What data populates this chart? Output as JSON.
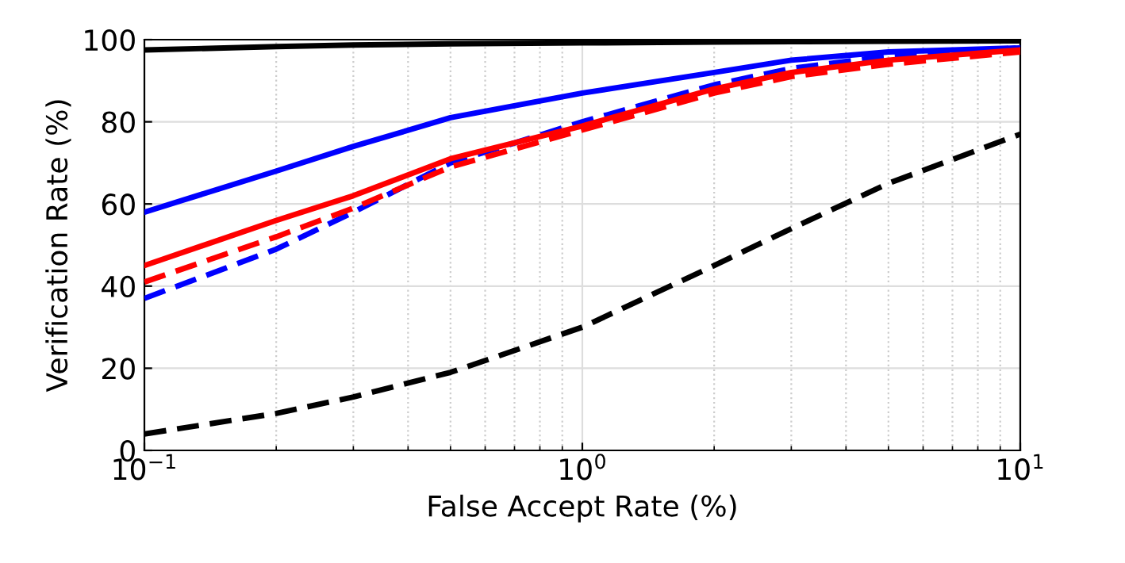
{
  "chart_data": {
    "type": "line",
    "xlabel": "False Accept Rate (%)",
    "ylabel": "Verification Rate (%)",
    "log": "x",
    "xlim": [
      0.1,
      10
    ],
    "xticks": [
      {
        "value": 0.1,
        "label": "10$^{−1}$"
      },
      {
        "value": 1,
        "label": "10$^{0}$"
      },
      {
        "value": 10,
        "label": "10$^{1}$"
      }
    ],
    "ylim": [
      0,
      100
    ],
    "yticks": [
      0,
      20,
      40,
      60,
      80,
      100
    ],
    "grid": true,
    "legend": false,
    "x": [
      0.1,
      0.2,
      0.3,
      0.5,
      1,
      2,
      3,
      5,
      10
    ],
    "series": [
      {
        "color": "#000000",
        "line_style": "solid",
        "values": [
          97.5,
          98.3,
          98.7,
          99,
          99.2,
          99.4,
          99.5,
          99.6,
          99.7
        ]
      },
      {
        "color": "#0000ff",
        "line_style": "solid",
        "values": [
          58,
          68,
          74,
          81,
          87,
          92,
          95,
          97,
          98
        ]
      },
      {
        "color": "#0000ff",
        "line_style": "dashed",
        "values": [
          37,
          49,
          58,
          70,
          80,
          89,
          93,
          96,
          98
        ]
      },
      {
        "color": "#ff0000",
        "line_style": "solid",
        "values": [
          45,
          56,
          62,
          71,
          79,
          88,
          92,
          95,
          97.5
        ]
      },
      {
        "color": "#ff0000",
        "line_style": "dashed",
        "values": [
          41,
          52,
          59,
          69,
          78,
          87,
          91,
          94,
          97
        ]
      },
      {
        "color": "#000000",
        "line_style": "dashed",
        "values": [
          4,
          9,
          13,
          19,
          30,
          45,
          54,
          65,
          77
        ]
      }
    ]
  }
}
